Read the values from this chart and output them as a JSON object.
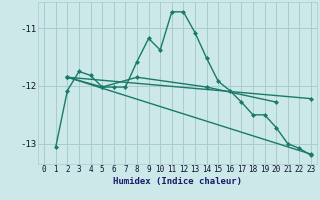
{
  "xlabel": "Humidex (Indice chaleur)",
  "bg_color": "#cce8e8",
  "grid_color": "#a8cccc",
  "line_color": "#1a7a6a",
  "marker_color": "#1a7a6a",
  "xlim": [
    -0.5,
    23.5
  ],
  "ylim": [
    -13.35,
    -10.55
  ],
  "yticks": [
    -13,
    -12,
    -11
  ],
  "xticks": [
    0,
    1,
    2,
    3,
    4,
    5,
    6,
    7,
    8,
    9,
    10,
    11,
    12,
    13,
    14,
    15,
    16,
    17,
    18,
    19,
    20,
    21,
    22,
    23
  ],
  "series": [
    {
      "x": [
        1,
        2,
        3,
        4,
        5,
        6,
        7,
        8,
        9,
        10,
        11,
        12,
        13,
        14,
        15,
        16,
        17,
        18,
        19,
        20,
        21,
        22,
        23
      ],
      "y": [
        -13.05,
        -12.08,
        -11.75,
        -11.82,
        -12.02,
        -12.02,
        -12.02,
        -11.58,
        -11.18,
        -11.38,
        -10.72,
        -10.72,
        -11.08,
        -11.52,
        -11.92,
        -12.08,
        -12.28,
        -12.5,
        -12.5,
        -12.72,
        -13.0,
        -13.08,
        -13.2
      ],
      "marker": "D",
      "markersize": 2.0,
      "linewidth": 1.0
    },
    {
      "x": [
        2,
        5,
        8,
        14,
        20
      ],
      "y": [
        -11.85,
        -12.02,
        -11.85,
        -12.02,
        -12.28
      ],
      "marker": "D",
      "markersize": 2.0,
      "linewidth": 1.0
    },
    {
      "x": [
        2,
        23
      ],
      "y": [
        -11.85,
        -12.22
      ],
      "marker": "D",
      "markersize": 2.0,
      "linewidth": 1.0
    },
    {
      "x": [
        2,
        23
      ],
      "y": [
        -11.85,
        -13.18
      ],
      "marker": "D",
      "markersize": 2.0,
      "linewidth": 1.0
    }
  ]
}
